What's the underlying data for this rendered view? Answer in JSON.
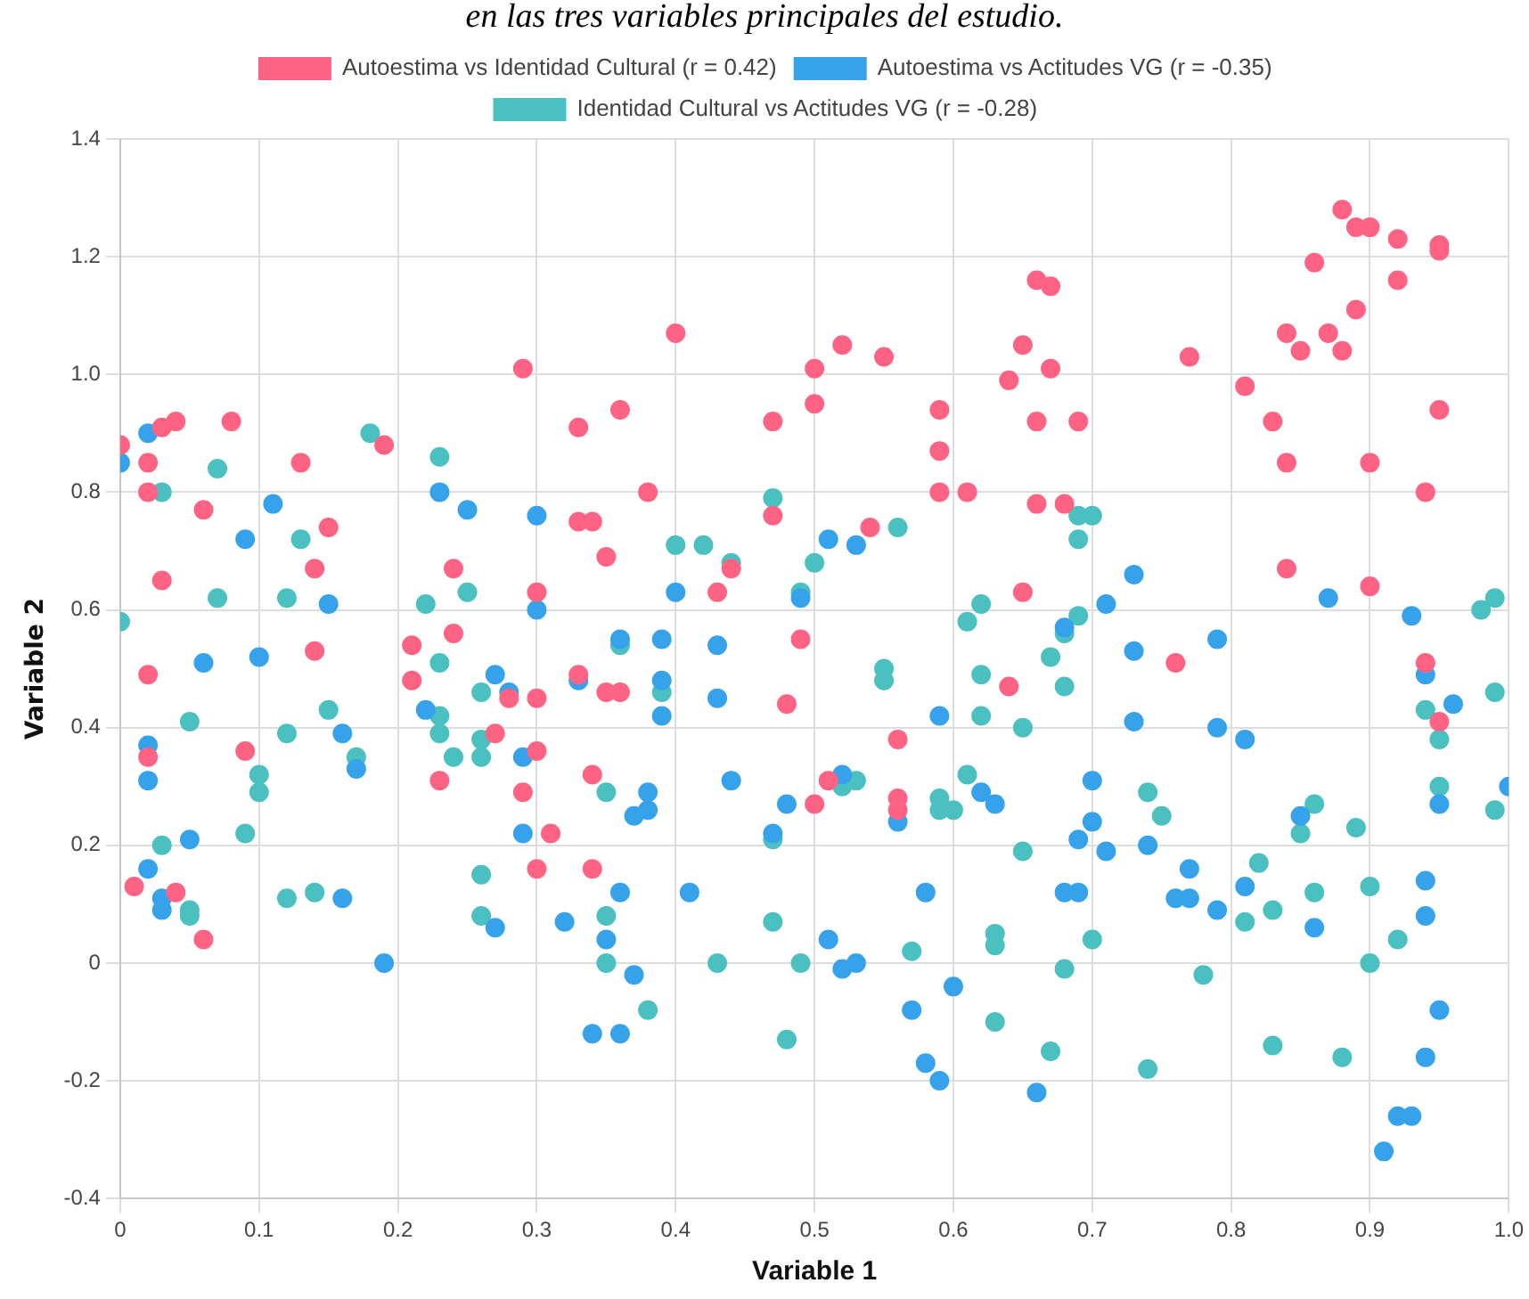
{
  "chart_data": {
    "type": "scatter",
    "title": "en las tres variables principales del estudio.",
    "xlabel": "Variable 1",
    "ylabel": "Variable 2",
    "xlim": [
      0,
      1
    ],
    "xticks": [
      0,
      0.1,
      0.2,
      0.3,
      0.4,
      0.5,
      0.6,
      0.7,
      0.8,
      0.9,
      {
        "value": 1,
        "label": "1.0"
      }
    ],
    "ylim": [
      -0.4,
      1.4
    ],
    "yticks": [
      -0.4,
      -0.2,
      0,
      0.2,
      0.4,
      0.6,
      0.8,
      {
        "value": 1,
        "label": "1.0"
      },
      1.2,
      1.4
    ],
    "grid": true,
    "legend": "top",
    "marker": "circle",
    "series": [
      {
        "name": "Autoestima vs Identidad Cultural (r = 0.42)",
        "color": "#ff6384",
        "x": [
          0.0,
          0.02,
          0.03,
          0.02,
          0.04,
          0.03,
          0.02,
          0.02,
          0.01,
          0.04,
          0.06,
          0.06,
          0.08,
          0.13,
          0.15,
          0.14,
          0.14,
          0.09,
          0.29,
          0.19,
          0.33,
          0.33,
          0.34,
          0.35,
          0.24,
          0.21,
          0.24,
          0.3,
          0.21,
          0.33,
          0.28,
          0.3,
          0.27,
          0.3,
          0.23,
          0.29,
          0.31,
          0.3,
          0.34,
          0.34,
          0.36,
          0.4,
          0.38,
          0.47,
          0.47,
          0.5,
          0.5,
          0.52,
          0.55,
          0.54,
          0.59,
          0.59,
          0.59,
          0.61,
          0.66,
          0.67,
          0.65,
          0.67,
          0.64,
          0.66,
          0.66,
          0.68,
          0.44,
          0.43,
          0.49,
          0.65,
          0.64,
          0.35,
          0.36,
          0.48,
          0.56,
          0.51,
          0.5,
          0.56,
          0.56,
          0.88,
          0.89,
          0.9,
          0.92,
          0.95,
          0.95,
          0.86,
          0.92,
          0.89,
          0.84,
          0.87,
          0.85,
          0.88,
          0.77,
          0.81,
          0.83,
          0.95,
          0.69,
          0.84,
          0.9,
          0.94,
          0.84,
          0.9,
          0.76,
          0.94,
          0.95
        ],
        "values": [
          0.88,
          0.85,
          0.91,
          0.8,
          0.92,
          0.65,
          0.49,
          0.35,
          0.13,
          0.12,
          0.04,
          0.77,
          0.92,
          0.85,
          0.74,
          0.67,
          0.53,
          0.36,
          1.01,
          0.88,
          0.91,
          0.75,
          0.75,
          0.69,
          0.67,
          0.54,
          0.56,
          0.63,
          0.48,
          0.49,
          0.45,
          0.45,
          0.39,
          0.36,
          0.31,
          0.29,
          0.22,
          0.16,
          0.32,
          0.16,
          0.94,
          1.07,
          0.8,
          0.92,
          0.76,
          1.01,
          0.95,
          1.05,
          1.03,
          0.74,
          0.94,
          0.87,
          0.8,
          0.8,
          1.16,
          1.15,
          1.05,
          1.01,
          0.99,
          0.92,
          0.78,
          0.78,
          0.67,
          0.63,
          0.55,
          0.63,
          0.47,
          0.46,
          0.46,
          0.44,
          0.38,
          0.31,
          0.27,
          0.28,
          0.26,
          1.28,
          1.25,
          1.25,
          1.23,
          1.22,
          1.21,
          1.19,
          1.16,
          1.11,
          1.07,
          1.07,
          1.04,
          1.04,
          1.03,
          0.98,
          0.92,
          0.94,
          0.92,
          0.85,
          0.85,
          0.8,
          0.67,
          0.64,
          0.51,
          0.51,
          0.41
        ]
      },
      {
        "name": "Autoestima vs Actitudes VG (r = -0.35)",
        "color": "#36a2eb",
        "x": [
          0.02,
          0.0,
          0.11,
          0.09,
          0.23,
          0.25,
          0.3,
          0.15,
          0.06,
          0.1,
          0.3,
          0.27,
          0.28,
          0.33,
          0.22,
          0.16,
          0.17,
          0.02,
          0.02,
          0.05,
          0.02,
          0.03,
          0.03,
          0.29,
          0.29,
          0.16,
          0.27,
          0.19,
          0.34,
          0.32,
          0.51,
          0.53,
          0.4,
          0.49,
          0.36,
          0.39,
          0.43,
          0.68,
          0.39,
          0.39,
          0.43,
          0.59,
          0.38,
          0.38,
          0.37,
          0.44,
          0.48,
          0.47,
          0.52,
          0.56,
          0.62,
          0.63,
          0.36,
          0.41,
          0.35,
          0.37,
          0.51,
          0.52,
          0.53,
          0.58,
          0.6,
          0.57,
          0.58,
          0.59,
          0.66,
          0.36,
          0.68,
          0.94,
          0.96,
          0.73,
          0.79,
          0.81,
          0.7,
          0.7,
          0.69,
          0.71,
          0.74,
          0.85,
          0.95,
          1.0,
          0.69,
          0.77,
          0.76,
          0.77,
          0.79,
          0.81,
          0.86,
          0.94,
          0.94,
          0.95,
          0.94,
          0.92,
          0.93,
          0.91,
          0.73,
          0.71,
          0.73,
          0.79,
          0.87,
          0.93
        ],
        "values": [
          0.9,
          0.85,
          0.78,
          0.72,
          0.8,
          0.77,
          0.76,
          0.61,
          0.51,
          0.52,
          0.6,
          0.49,
          0.46,
          0.48,
          0.43,
          0.39,
          0.33,
          0.37,
          0.31,
          0.21,
          0.16,
          0.11,
          0.09,
          0.35,
          0.22,
          0.11,
          0.06,
          0.0,
          -0.12,
          0.07,
          0.72,
          0.71,
          0.63,
          0.62,
          0.55,
          0.55,
          0.54,
          0.57,
          0.48,
          0.42,
          0.45,
          0.42,
          0.29,
          0.26,
          0.25,
          0.31,
          0.27,
          0.22,
          0.32,
          0.24,
          0.29,
          0.27,
          0.12,
          0.12,
          0.04,
          -0.02,
          0.04,
          -0.01,
          0.0,
          0.12,
          -0.04,
          -0.08,
          -0.17,
          -0.2,
          -0.22,
          -0.12,
          0.12,
          0.49,
          0.44,
          0.41,
          0.4,
          0.38,
          0.31,
          0.24,
          0.21,
          0.19,
          0.2,
          0.25,
          0.27,
          0.3,
          0.12,
          0.16,
          0.11,
          0.11,
          0.09,
          0.13,
          0.06,
          0.14,
          0.08,
          -0.08,
          -0.16,
          -0.26,
          -0.26,
          -0.32,
          0.66,
          0.61,
          0.53,
          0.55,
          0.62,
          0.59
        ]
      },
      {
        "name": "Identidad Cultural vs Actitudes VG (r = -0.28)",
        "color": "#4bc0c0",
        "x": [
          0.0,
          0.03,
          0.07,
          0.07,
          0.12,
          0.13,
          0.18,
          0.23,
          0.22,
          0.25,
          0.23,
          0.26,
          0.23,
          0.23,
          0.26,
          0.26,
          0.24,
          0.05,
          0.12,
          0.15,
          0.17,
          0.1,
          0.1,
          0.09,
          0.03,
          0.05,
          0.05,
          0.12,
          0.14,
          0.26,
          0.26,
          0.47,
          0.56,
          0.4,
          0.42,
          0.44,
          0.5,
          0.49,
          0.36,
          0.61,
          0.62,
          0.62,
          0.67,
          0.68,
          0.55,
          0.55,
          0.39,
          0.35,
          0.47,
          0.52,
          0.53,
          0.59,
          0.59,
          0.6,
          0.61,
          0.62,
          0.65,
          0.65,
          0.35,
          0.35,
          0.38,
          0.43,
          0.47,
          0.49,
          0.48,
          0.57,
          0.63,
          0.63,
          0.63,
          0.67,
          0.68,
          0.68,
          0.74,
          0.75,
          0.7,
          0.82,
          0.81,
          0.83,
          0.86,
          0.85,
          0.89,
          0.86,
          0.9,
          0.92,
          0.9,
          0.78,
          0.74,
          0.83,
          0.88,
          0.94,
          0.95,
          0.95,
          0.99,
          0.99,
          0.69,
          0.7,
          0.69,
          0.69,
          0.98,
          0.99
        ],
        "values": [
          0.58,
          0.8,
          0.84,
          0.62,
          0.62,
          0.72,
          0.9,
          0.86,
          0.61,
          0.63,
          0.51,
          0.46,
          0.42,
          0.39,
          0.38,
          0.35,
          0.35,
          0.41,
          0.39,
          0.43,
          0.35,
          0.32,
          0.29,
          0.22,
          0.2,
          0.09,
          0.08,
          0.11,
          0.12,
          0.15,
          0.08,
          0.79,
          0.74,
          0.71,
          0.71,
          0.68,
          0.68,
          0.63,
          0.54,
          0.58,
          0.61,
          0.49,
          0.52,
          0.56,
          0.48,
          0.5,
          0.46,
          0.29,
          0.21,
          0.3,
          0.31,
          0.28,
          0.26,
          0.26,
          0.32,
          0.42,
          0.4,
          0.19,
          0.08,
          0.0,
          -0.08,
          0.0,
          0.07,
          0.0,
          -0.13,
          0.02,
          0.05,
          0.03,
          -0.1,
          -0.15,
          -0.01,
          0.47,
          0.29,
          0.25,
          0.04,
          0.17,
          0.07,
          0.09,
          0.27,
          0.22,
          0.23,
          0.12,
          0.13,
          0.04,
          0.0,
          -0.02,
          -0.18,
          -0.14,
          -0.16,
          0.43,
          0.38,
          0.3,
          0.46,
          0.26,
          0.76,
          0.76,
          0.72,
          0.59,
          0.6,
          0.62
        ]
      }
    ]
  }
}
